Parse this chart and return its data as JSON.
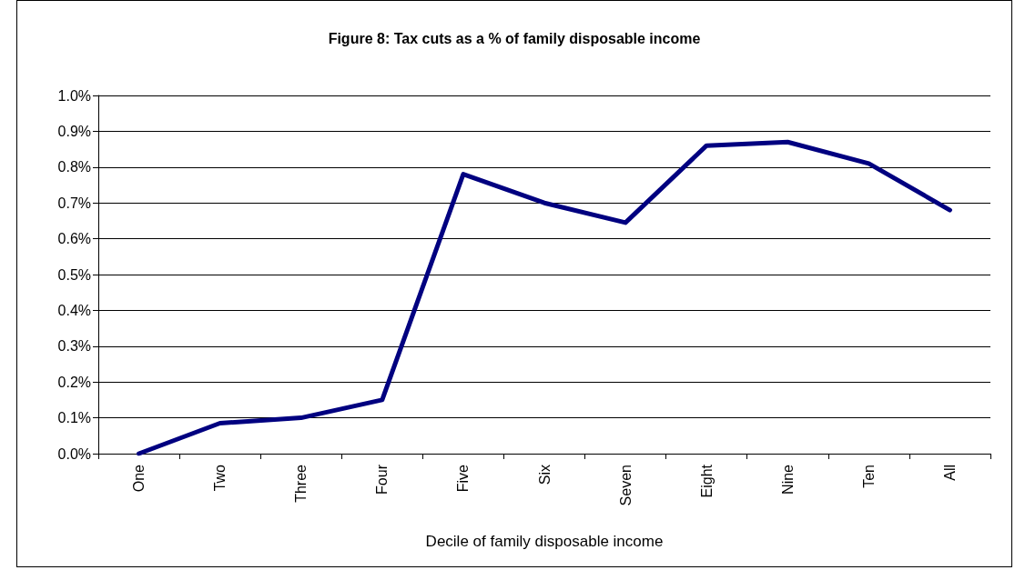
{
  "chart_data": {
    "type": "line",
    "title": "Figure 8: Tax cuts as a % of family disposable income",
    "xlabel": "Decile of family disposable income",
    "categories": [
      "One",
      "Two",
      "Three",
      "Four",
      "Five",
      "Six",
      "Seven",
      "Eight",
      "Nine",
      "Ten",
      "All"
    ],
    "series": [
      {
        "color": "#000080",
        "values": [
          0,
          0.085,
          0.1,
          0.15,
          0.78,
          0.7,
          0.645,
          0.86,
          0.87,
          0.81,
          0.68
        ]
      }
    ],
    "ylim": [
      0,
      1
    ],
    "yticks": [
      {
        "value": 0,
        "label": "0.0%"
      },
      {
        "value": 0.1,
        "label": "0.1%"
      },
      {
        "value": 0.2,
        "label": "0.2%"
      },
      {
        "value": 0.3,
        "label": "0.3%"
      },
      {
        "value": 0.4,
        "label": "0.4%"
      },
      {
        "value": 0.5,
        "label": "0.5%"
      },
      {
        "value": 0.6,
        "label": "0.6%"
      },
      {
        "value": 0.7,
        "label": "0.7%"
      },
      {
        "value": 0.8,
        "label": "0.8%"
      },
      {
        "value": 0.9,
        "label": "0.9%"
      },
      {
        "value": 1,
        "label": "1.0%"
      }
    ],
    "grid": "y",
    "marker": "none",
    "line_style": "solid"
  }
}
